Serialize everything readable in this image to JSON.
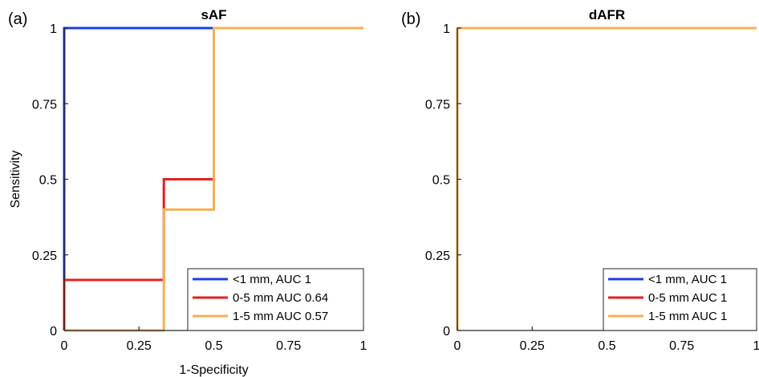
{
  "chart_data": [
    {
      "type": "line",
      "panel_label": "(a)",
      "title": "sAF",
      "xlabel": "1-Specificity",
      "ylabel": "Sensitivity",
      "xlim": [
        0,
        1
      ],
      "ylim": [
        0,
        1
      ],
      "xticks": [
        "0",
        "0.25",
        "0.5",
        "0.75",
        "1"
      ],
      "yticks": [
        "0",
        "0.25",
        "0.5",
        "0.75",
        "1"
      ],
      "grid": false,
      "legend_position": "bottom-right",
      "series": [
        {
          "name": "<1 mm, AUC 1",
          "color": "#1f3fe0",
          "x": [
            0,
            0,
            0.5
          ],
          "y": [
            0,
            1,
            1
          ]
        },
        {
          "name": "0-5 mm AUC 0.64",
          "color": "#e32020",
          "x": [
            0,
            0,
            0.333,
            0.333,
            0.5,
            0.5,
            1
          ],
          "y": [
            0,
            0.167,
            0.167,
            0.5,
            0.5,
            1,
            1
          ]
        },
        {
          "name": "1-5 mm AUC 0.57",
          "color": "#f5b050",
          "x": [
            0,
            0.333,
            0.333,
            0.5,
            0.5,
            1
          ],
          "y": [
            0,
            0,
            0.4,
            0.4,
            1,
            1
          ]
        }
      ]
    },
    {
      "type": "line",
      "panel_label": "(b)",
      "title": "dAFR",
      "xlabel": "",
      "ylabel": "",
      "xlim": [
        0,
        1
      ],
      "ylim": [
        0,
        1
      ],
      "xticks": [
        "0",
        "0.25",
        "0.5",
        "0.75",
        "1"
      ],
      "yticks": [
        "0",
        "0.25",
        "0.5",
        "0.75",
        "1"
      ],
      "grid": false,
      "legend_position": "bottom-right",
      "series": [
        {
          "name": "<1 mm, AUC 1",
          "color": "#1f3fe0",
          "x": [
            0,
            0,
            1
          ],
          "y": [
            0,
            1,
            1
          ]
        },
        {
          "name": "0-5 mm AUC 1",
          "color": "#e32020",
          "x": [
            0,
            0,
            1
          ],
          "y": [
            0,
            1,
            1
          ]
        },
        {
          "name": "1-5 mm AUC 1",
          "color": "#f5b050",
          "x": [
            0,
            0,
            1
          ],
          "y": [
            0,
            1,
            1
          ]
        }
      ]
    }
  ]
}
